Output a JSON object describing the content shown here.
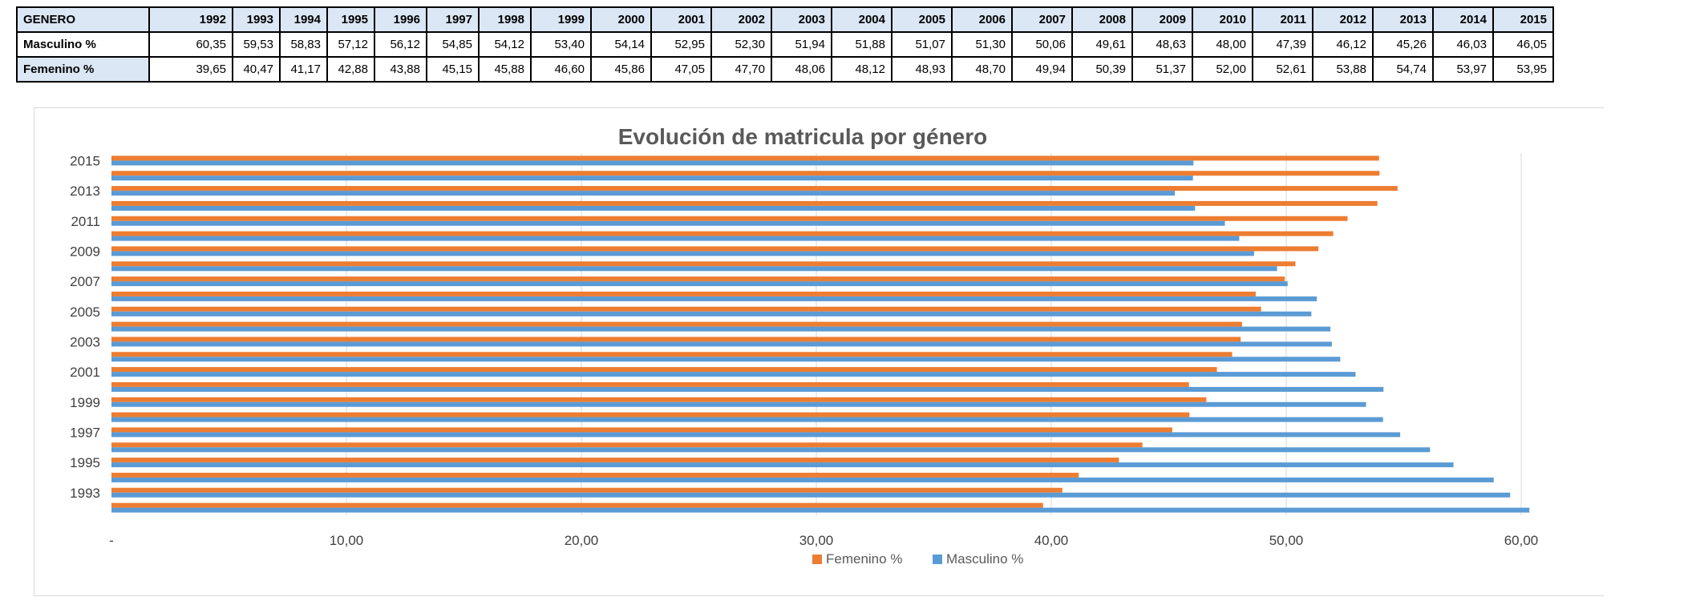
{
  "table": {
    "header_label": "GENERO",
    "years": [
      "1992",
      "1993",
      "1994",
      "1995",
      "1996",
      "1997",
      "1998",
      "1999",
      "2000",
      "2001",
      "2002",
      "2003",
      "2004",
      "2005",
      "2006",
      "2007",
      "2008",
      "2009",
      "2010",
      "2011",
      "2012",
      "2013",
      "2014",
      "2015"
    ],
    "rows": [
      {
        "label": "Masculino %",
        "values": [
          "60,35",
          "59,53",
          "58,83",
          "57,12",
          "56,12",
          "54,85",
          "54,12",
          "53,40",
          "54,14",
          "52,95",
          "52,30",
          "51,94",
          "51,88",
          "51,07",
          "51,30",
          "50,06",
          "49,61",
          "48,63",
          "48,00",
          "47,39",
          "46,12",
          "45,26",
          "46,03",
          "46,05"
        ]
      },
      {
        "label": "Femenino %",
        "values": [
          "39,65",
          "40,47",
          "41,17",
          "42,88",
          "43,88",
          "45,15",
          "45,88",
          "46,60",
          "45,86",
          "47,05",
          "47,70",
          "48,06",
          "48,12",
          "48,93",
          "48,70",
          "49,94",
          "50,39",
          "51,37",
          "52,00",
          "52,61",
          "53,88",
          "54,74",
          "53,97",
          "53,95"
        ]
      }
    ]
  },
  "chart_data": {
    "type": "bar",
    "orientation": "horizontal",
    "title": "Evolución de matricula por género",
    "categories": [
      "1992",
      "1993",
      "1994",
      "1995",
      "1996",
      "1997",
      "1998",
      "1999",
      "2000",
      "2001",
      "2002",
      "2003",
      "2004",
      "2005",
      "2006",
      "2007",
      "2008",
      "2009",
      "2010",
      "2011",
      "2012",
      "2013",
      "2014",
      "2015"
    ],
    "category_tick_labels": [
      "1993",
      "1995",
      "1997",
      "1999",
      "2001",
      "2003",
      "2005",
      "2007",
      "2009",
      "2011",
      "2013",
      "2015"
    ],
    "series": [
      {
        "name": "Masculino %",
        "color": "#5b9bd5",
        "values": [
          60.35,
          59.53,
          58.83,
          57.12,
          56.12,
          54.85,
          54.12,
          53.4,
          54.14,
          52.95,
          52.3,
          51.94,
          51.88,
          51.07,
          51.3,
          50.06,
          49.61,
          48.63,
          48.0,
          47.39,
          46.12,
          45.26,
          46.03,
          46.05
        ]
      },
      {
        "name": "Femenino %",
        "color": "#ed7d31",
        "values": [
          39.65,
          40.47,
          41.17,
          42.88,
          43.88,
          45.15,
          45.88,
          46.6,
          45.86,
          47.05,
          47.7,
          48.06,
          48.12,
          48.93,
          48.7,
          49.94,
          50.39,
          51.37,
          52.0,
          52.61,
          53.88,
          54.74,
          53.97,
          53.95
        ]
      }
    ],
    "xlim": [
      0,
      60
    ],
    "x_ticks": [
      0,
      10,
      20,
      30,
      40,
      50,
      60
    ],
    "x_tick_labels": [
      "-",
      "10,00",
      "20,00",
      "30,00",
      "40,00",
      "50,00",
      "60,00"
    ],
    "grid": true,
    "legend": {
      "position": "bottom",
      "order": [
        "Femenino %",
        "Masculino %"
      ]
    }
  }
}
